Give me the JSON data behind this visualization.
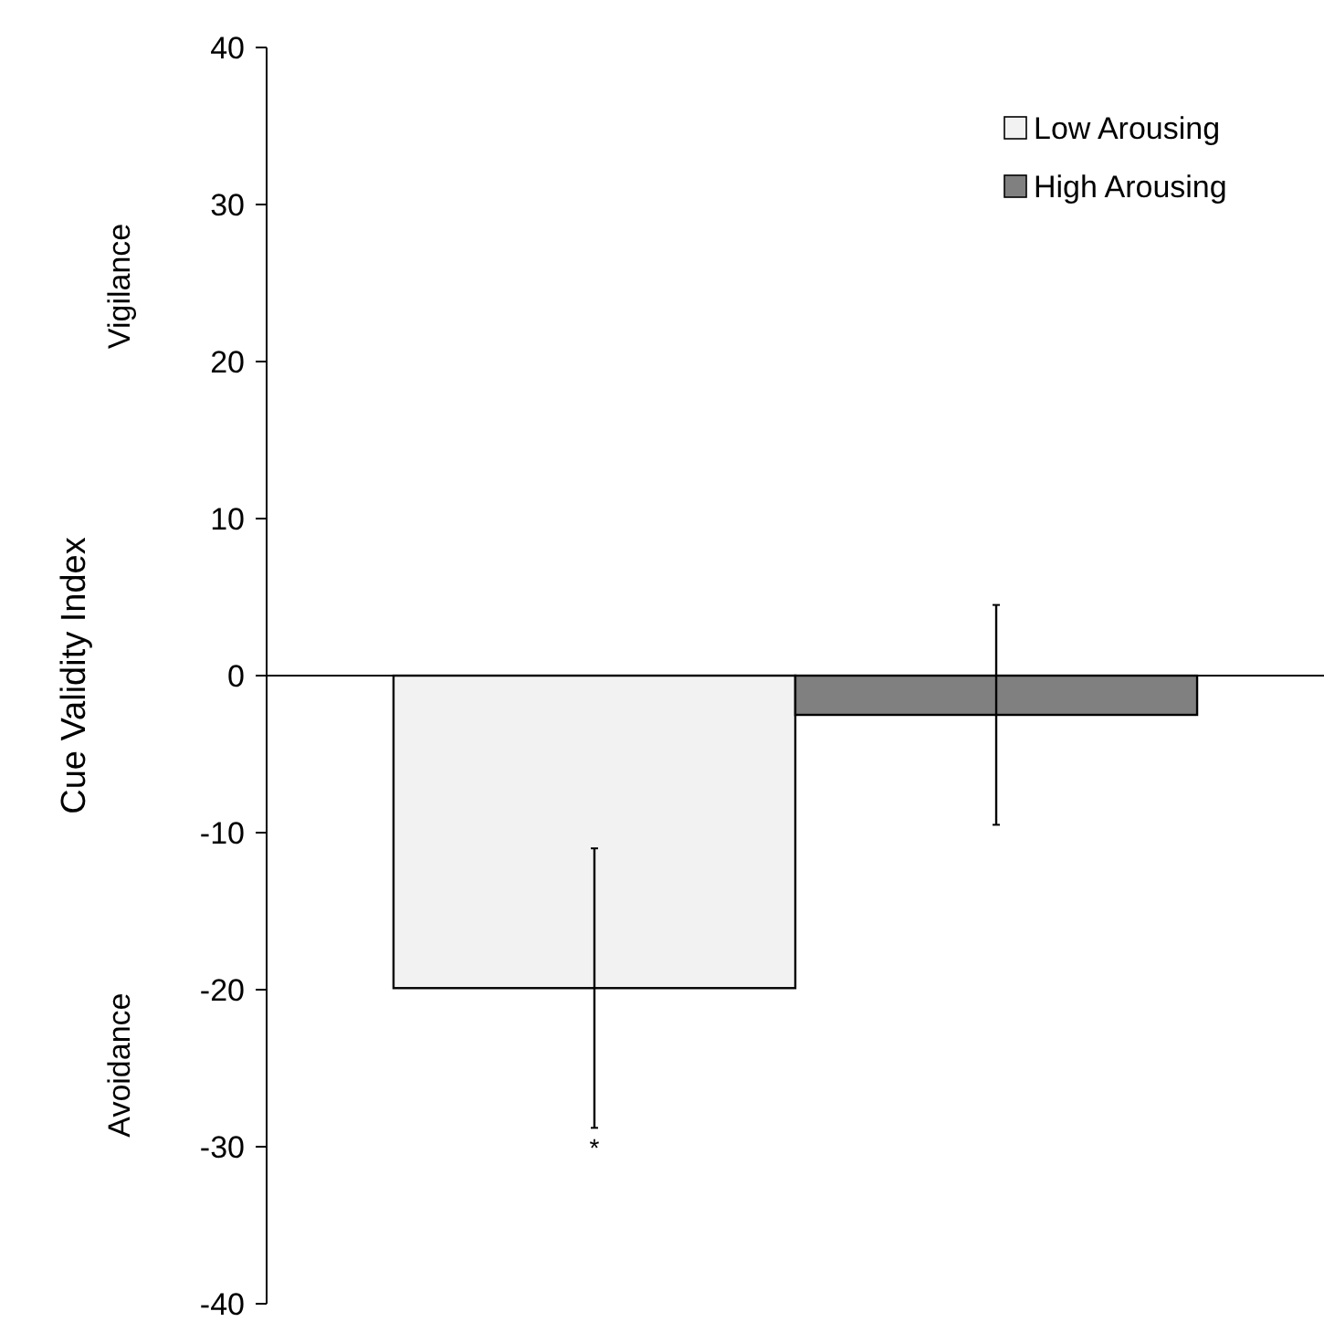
{
  "chart_data": {
    "type": "bar",
    "ylabel": "Cue Validity Index",
    "categories": [
      null
    ],
    "series": [
      {
        "name": "Low Arousing",
        "color": "#f2f2f2",
        "values": [
          -19.9
        ],
        "errors": [
          8.9
        ]
      },
      {
        "name": "High Arousing",
        "color": "#808080",
        "values": [
          -2.5
        ],
        "errors": [
          7.0
        ]
      }
    ],
    "ylim": [
      -40,
      40
    ],
    "yticks": [
      -40,
      -30,
      -20,
      -10,
      0,
      10,
      20,
      30,
      40
    ],
    "legend": "top right",
    "annotations": [
      "Vigilance",
      "Avoidance",
      "*"
    ]
  }
}
